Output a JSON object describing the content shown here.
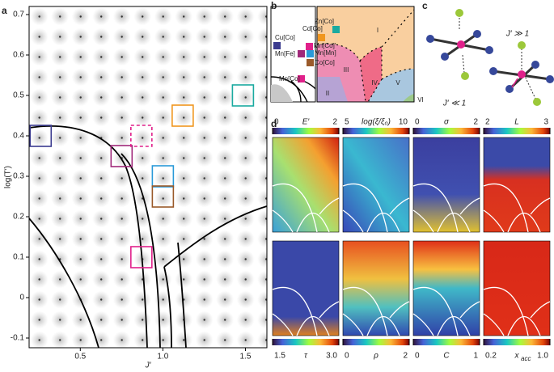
{
  "panel_labels": [
    "a",
    "b",
    "c",
    "d"
  ],
  "chart_data": [
    {
      "type": "scatter",
      "xlabel": "J′",
      "ylabel": "log(T′)",
      "xlim": [
        0.19,
        1.63
      ],
      "ylim": [
        -0.124,
        0.72
      ],
      "xticks": [
        0.5,
        {
          "value": 1,
          "label": "1.0"
        },
        1.5
      ],
      "yticks": [
        -0.1,
        0,
        0.1,
        0.2,
        0.3,
        0.4,
        0.5,
        0.6,
        0.7
      ],
      "marker": "square",
      "series": [
        {
          "name": "Cu[Co]",
          "color": "#3b3b8f",
          "x": [
            0.26
          ],
          "values": [
            0.4
          ]
        },
        {
          "name": "Mn[Fe]",
          "color": "#a0287a",
          "x": [
            0.75
          ],
          "values": [
            0.35
          ]
        },
        {
          "name": "Mn[Co]′",
          "color": "#e0208a",
          "dashed": true,
          "x": [
            0.87
          ],
          "values": [
            0.4
          ]
        },
        {
          "name": "Mn[Co]",
          "color": "#e0208a",
          "x": [
            0.87
          ],
          "values": [
            0.1
          ]
        },
        {
          "name": "Mn[Mn]",
          "color": "#2a9ad8",
          "x": [
            1.0
          ],
          "values": [
            0.3
          ]
        },
        {
          "name": "Co[Co]",
          "color": "#9a5a2a",
          "x": [
            1.0
          ],
          "values": [
            0.25
          ]
        },
        {
          "name": "Cd[Co]",
          "color": "#f0961e",
          "x": [
            1.12
          ],
          "values": [
            0.45
          ]
        },
        {
          "name": "Zn[Co]",
          "color": "#1aaaa0",
          "x": [
            1.485
          ],
          "values": [
            0.5
          ]
        }
      ]
    }
  ],
  "phase_diagram": {
    "regions": [
      "I",
      "II",
      "III",
      "IV",
      "V",
      "VI"
    ]
  },
  "structures": {
    "labels": [
      "J′ ≪ 1",
      "J′ ≫ 1"
    ]
  },
  "maps": [
    {
      "label": "E′",
      "ticks": [
        0,
        2
      ]
    },
    {
      "label": "log(ξ/ξ₀)",
      "ticks": [
        5,
        10
      ]
    },
    {
      "label": "σ",
      "ticks": [
        0,
        2
      ]
    },
    {
      "label": "L",
      "ticks": [
        2,
        3
      ]
    },
    {
      "label": "τ",
      "ticks": [
        1.5,
        {
          "value": 3,
          "label": "3.0"
        }
      ]
    },
    {
      "label": "ρ",
      "ticks": [
        0,
        2
      ]
    },
    {
      "label": "C",
      "ticks": [
        0,
        1
      ]
    },
    {
      "label": "x",
      "label_sub": "acc",
      "ticks": [
        0.2,
        {
          "value": 1,
          "label": "1.0"
        }
      ]
    }
  ]
}
